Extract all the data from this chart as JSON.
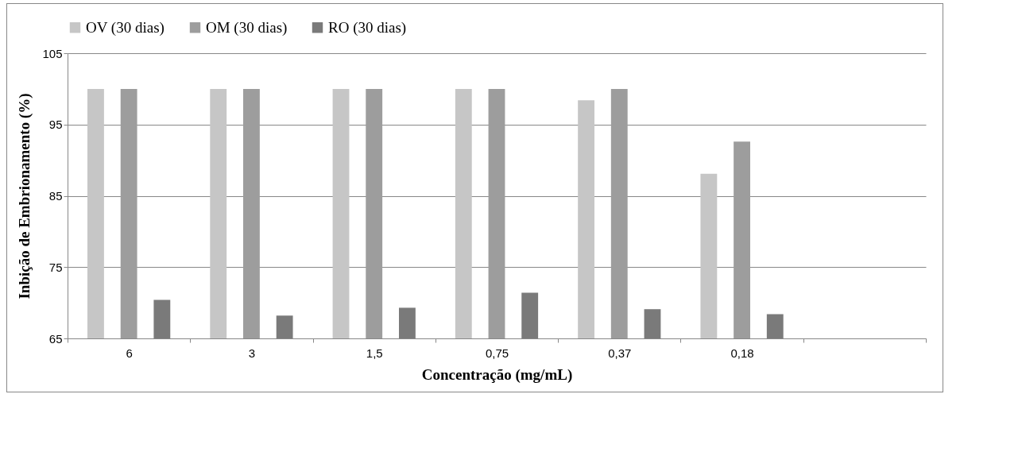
{
  "chart_data": {
    "type": "bar",
    "categories": [
      "6",
      "3",
      "1,5",
      "0,75",
      "0,37",
      "0,18",
      null
    ],
    "series": [
      {
        "name": "OV (30 dias)",
        "color": "#c6c6c6",
        "values": [
          100,
          100,
          100,
          100,
          98.4,
          88.1,
          null
        ]
      },
      {
        "name": "OM (30 dias)",
        "color": "#9d9d9d",
        "values": [
          100,
          100,
          100,
          100,
          100,
          92.6,
          null
        ]
      },
      {
        "name": "RO (30 dias)",
        "color": "#7a7a7a",
        "values": [
          70.4,
          68.2,
          69.3,
          71.4,
          69.1,
          68.4,
          null
        ]
      }
    ],
    "xlabel": "Concentração (mg/mL)",
    "ylabel": "Inbição de Embrionamento (%)",
    "ylim": [
      65,
      105
    ],
    "yticks": [
      65,
      75,
      85,
      95,
      105
    ],
    "grid": "y",
    "legend": "top"
  }
}
